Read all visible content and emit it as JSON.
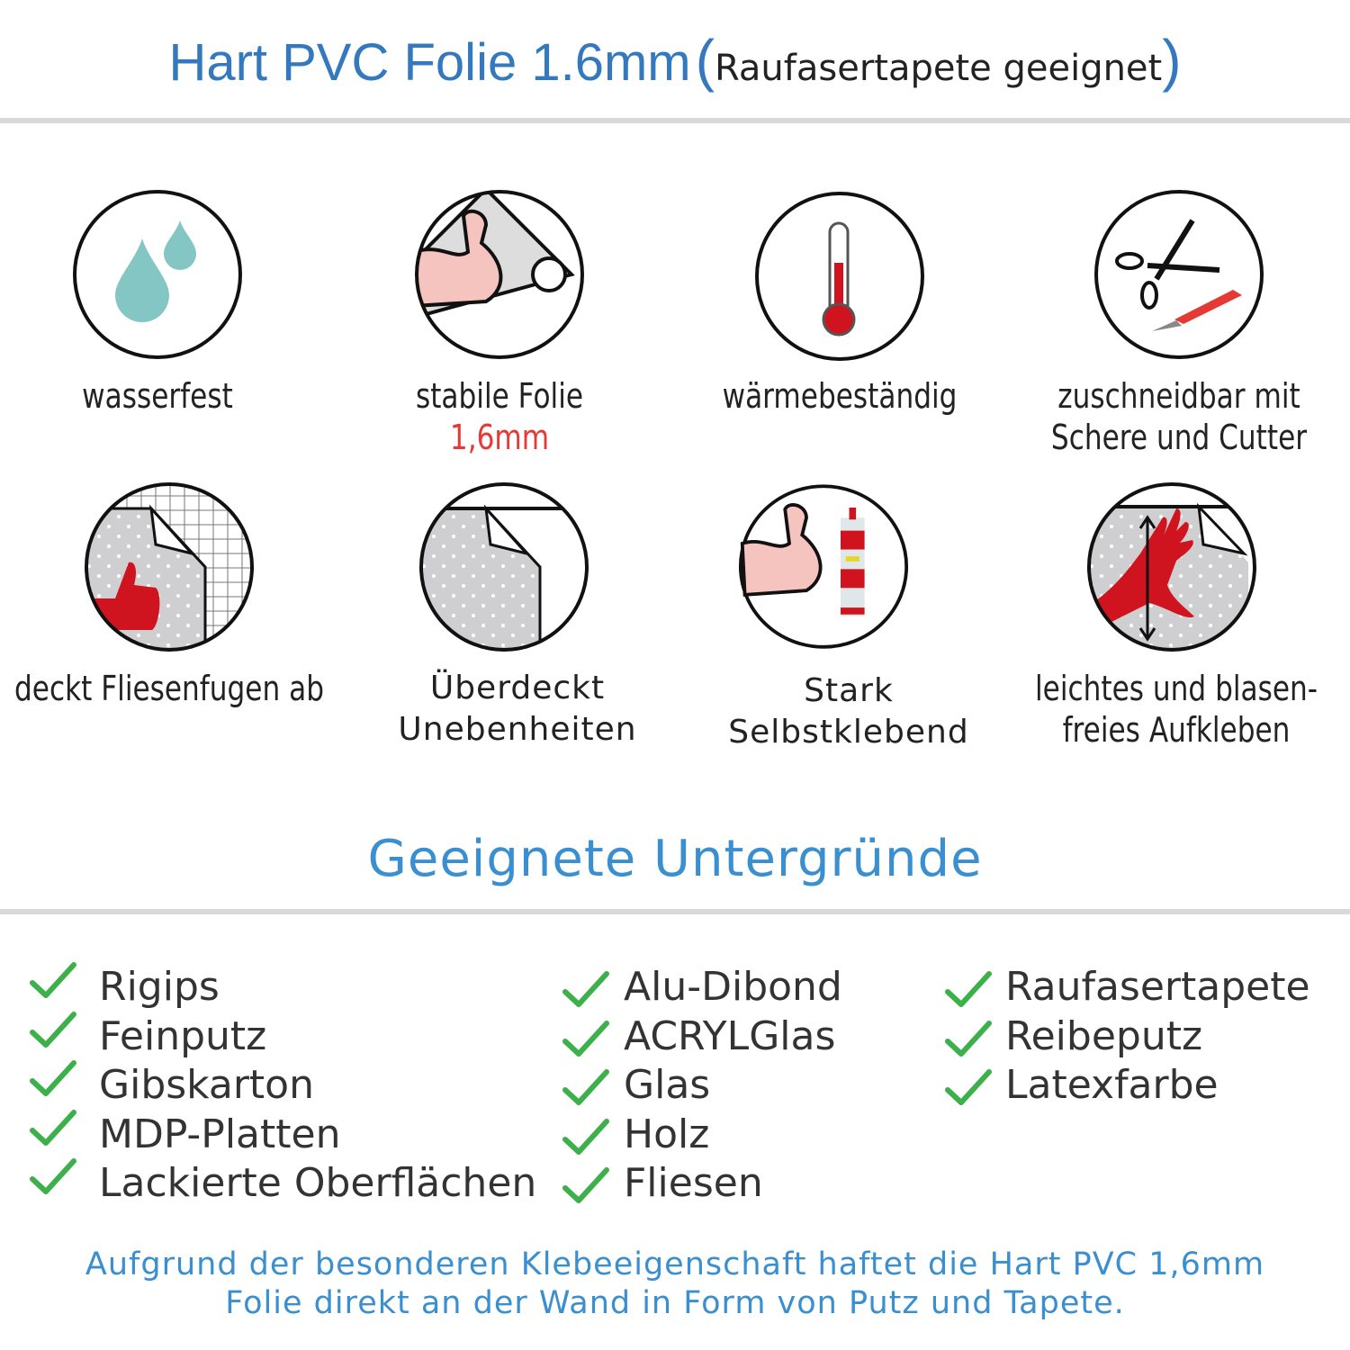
{
  "header": {
    "title": "Hart PVC Folie 1.6mm",
    "paren_open": "(",
    "subtitle": "Raufasertapete geeignet",
    "paren_close": ")"
  },
  "features": [
    {
      "icon": "water-drops-icon",
      "line1": "wasserfest"
    },
    {
      "icon": "strong-arm-foil-icon",
      "line1": "stabile Folie",
      "line2": "1,6mm"
    },
    {
      "icon": "thermometer-icon",
      "line1": "wärmebeständig"
    },
    {
      "icon": "scissors-cutter-icon",
      "line1": "zuschneidbar mit",
      "line2": "Schere und Cutter"
    },
    {
      "icon": "thumbs-up-tiles-icon",
      "line1": "deckt Fliesenfugen ab"
    },
    {
      "icon": "foil-corner-icon",
      "line1": "Überdeckt",
      "line2": "Unebenheiten"
    },
    {
      "icon": "strong-arm-glue-icon",
      "line1": "Stark",
      "line2": "Selbstklebend"
    },
    {
      "icon": "hand-smoothing-icon",
      "line1": "leichtes und blasen-",
      "line2": "freies Aufkleben"
    }
  ],
  "section_title": "Geeignete Untergründe",
  "surfaces": {
    "col1": [
      "Rigips",
      "Feinputz",
      "Gibskarton",
      "MDP-Platten",
      "Lackierte Oberflächen"
    ],
    "col2": [
      "Alu-Dibond",
      "ACRYLGlas",
      "Glas",
      "Holz",
      "Fliesen"
    ],
    "col3": [
      "Raufasertapete",
      "Reibeputz",
      "Latexfarbe"
    ]
  },
  "footer": {
    "line1": "Aufgrund der besonderen Klebeeigenschaft haftet die Hart PVC 1,6mm",
    "line2": "Folie direkt an der Wand in Form von Putz und Tapete."
  },
  "colors": {
    "title_blue": "#3479bd",
    "accent_blue": "#3a8fd0",
    "check_green": "#3cb04a",
    "highlight_red": "#e53935",
    "icon_red": "#d0141f",
    "drop_teal": "#84c6c4"
  }
}
